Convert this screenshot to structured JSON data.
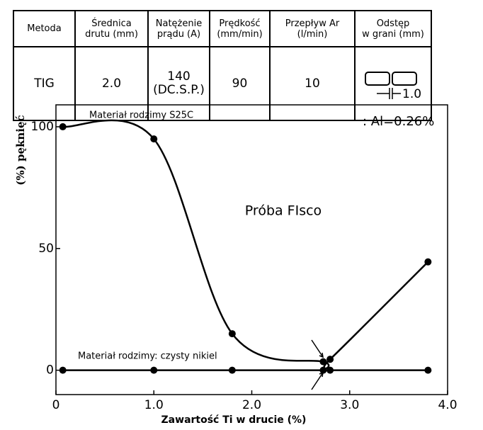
{
  "table": {
    "headers": [
      "Metoda",
      "Średnica\ndrutu (mm)",
      "Natężenie\nprądu (A)",
      "Prędkość\n(mm/min)",
      "Przepływ Ar\n(l/min)",
      "Odstęp\nw grani (mm)"
    ],
    "rows": [
      [
        "TIG",
        "2.0",
        "140\n(DC.S.P.)",
        "90",
        "10",
        "1.0"
      ]
    ]
  },
  "chart_data": {
    "type": "line",
    "xlabel": "Zawartość Ti w drucie (%)",
    "ylabel": "(%) pęknięć",
    "annotations": [
      ": Al=0.26%",
      "Próba FIsco"
    ],
    "series": [
      {
        "name": "Materiał rodzimy S25C",
        "color": "#000000",
        "x": [
          0.07,
          1.0,
          1.8,
          2.73,
          2.8,
          3.8
        ],
        "values": [
          100,
          95,
          15,
          3.5,
          4.5,
          44.5
        ]
      },
      {
        "name": "Materiał rodzimy: czysty nikiel",
        "color": "#000000",
        "x": [
          0.07,
          1.0,
          1.8,
          2.73,
          2.8,
          3.8
        ],
        "values": [
          0,
          0,
          0,
          0,
          0,
          0
        ]
      }
    ],
    "xlim": [
      0,
      4
    ],
    "ylim": [
      -10,
      109
    ],
    "xticks": [
      0,
      {
        "value": 1,
        "label": "1.0"
      },
      {
        "value": 2,
        "label": "2.0"
      },
      {
        "value": 3,
        "label": "3.0"
      },
      {
        "value": 4,
        "label": "4.0"
      }
    ],
    "yticks": [
      0,
      50,
      100
    ]
  }
}
